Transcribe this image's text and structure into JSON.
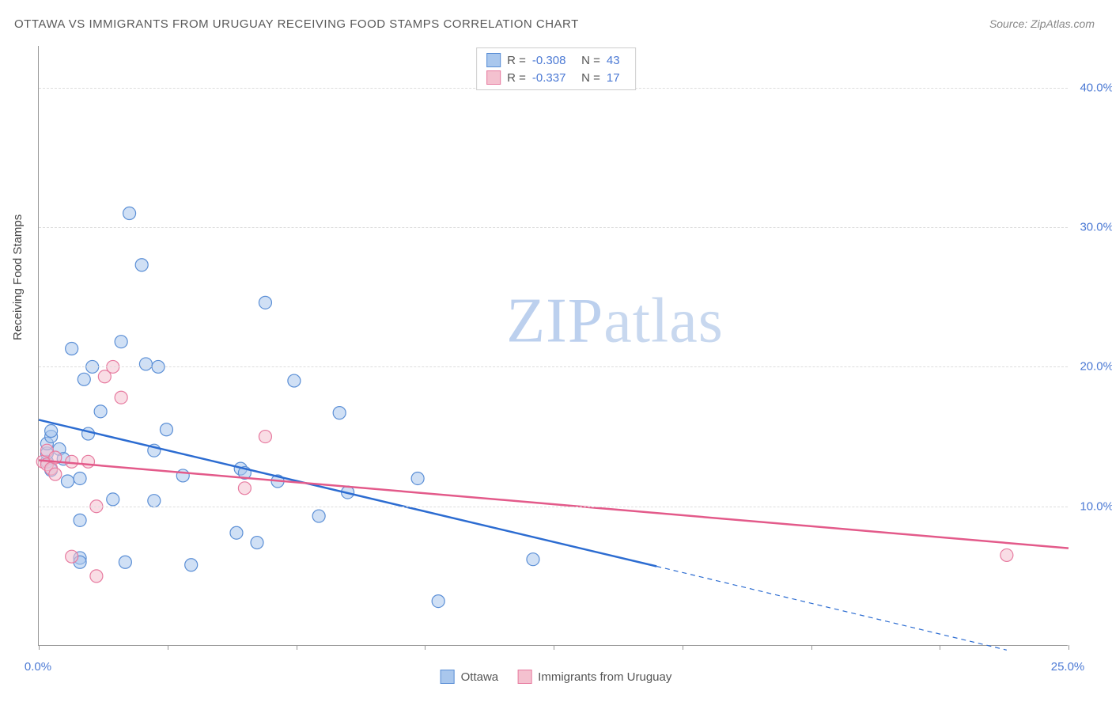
{
  "title": "OTTAWA VS IMMIGRANTS FROM URUGUAY RECEIVING FOOD STAMPS CORRELATION CHART",
  "source_label": "Source: ZipAtlas.com",
  "y_axis_label": "Receiving Food Stamps",
  "watermark": {
    "bold": "ZIP",
    "light": "atlas"
  },
  "chart": {
    "type": "scatter",
    "background_color": "#ffffff",
    "grid_color": "#dddddd",
    "axis_color": "#999999",
    "tick_label_color": "#4b79d4",
    "xlim": [
      0,
      25
    ],
    "ylim": [
      0,
      43
    ],
    "x_ticks": [
      0,
      3.125,
      6.25,
      9.375,
      12.5,
      15.625,
      18.75,
      21.875,
      25
    ],
    "x_tick_labels": {
      "0": "0.0%",
      "25": "25.0%"
    },
    "y_ticks": [
      10,
      20,
      30,
      40
    ],
    "y_tick_labels": {
      "10": "10.0%",
      "20": "20.0%",
      "30": "30.0%",
      "40": "40.0%"
    },
    "marker_radius": 8,
    "marker_opacity": 0.55,
    "series": [
      {
        "name": "Ottawa",
        "color_fill": "#a9c7ed",
        "color_stroke": "#5b8fd6",
        "line_color": "#2c6cd1",
        "line_width": 2.5,
        "R": "-0.308",
        "N": "43",
        "regression": {
          "x1": 0,
          "y1": 16.2,
          "x2": 15,
          "y2": 5.7
        },
        "regression_extrapolate": {
          "x1": 15,
          "y1": 5.7,
          "x2": 23.5,
          "y2": -0.3
        },
        "points": [
          [
            0.2,
            13.2
          ],
          [
            0.2,
            13.8
          ],
          [
            0.2,
            14.5
          ],
          [
            0.3,
            15.0
          ],
          [
            0.3,
            15.4
          ],
          [
            0.3,
            12.6
          ],
          [
            0.5,
            14.1
          ],
          [
            0.6,
            13.4
          ],
          [
            0.7,
            11.8
          ],
          [
            0.8,
            21.3
          ],
          [
            1.0,
            12.0
          ],
          [
            1.0,
            9.0
          ],
          [
            1.0,
            6.3
          ],
          [
            1.0,
            6.0
          ],
          [
            1.1,
            19.1
          ],
          [
            1.2,
            15.2
          ],
          [
            1.3,
            20.0
          ],
          [
            1.5,
            16.8
          ],
          [
            1.8,
            10.5
          ],
          [
            2.0,
            21.8
          ],
          [
            2.1,
            6.0
          ],
          [
            2.2,
            31.0
          ],
          [
            2.5,
            27.3
          ],
          [
            2.6,
            20.2
          ],
          [
            2.8,
            14.0
          ],
          [
            2.8,
            10.4
          ],
          [
            2.9,
            20.0
          ],
          [
            3.1,
            15.5
          ],
          [
            3.5,
            12.2
          ],
          [
            3.7,
            5.8
          ],
          [
            4.8,
            8.1
          ],
          [
            4.9,
            12.7
          ],
          [
            5.0,
            12.4
          ],
          [
            5.3,
            7.4
          ],
          [
            5.5,
            24.6
          ],
          [
            5.8,
            11.8
          ],
          [
            6.2,
            19.0
          ],
          [
            6.8,
            9.3
          ],
          [
            7.3,
            16.7
          ],
          [
            7.5,
            11.0
          ],
          [
            9.2,
            12.0
          ],
          [
            9.7,
            3.2
          ],
          [
            12.0,
            6.2
          ]
        ]
      },
      {
        "name": "Immigrants from Uruguay",
        "color_fill": "#f4c1cf",
        "color_stroke": "#e77ba0",
        "line_color": "#e35a8a",
        "line_width": 2.5,
        "R": "-0.337",
        "N": "17",
        "regression": {
          "x1": 0,
          "y1": 13.3,
          "x2": 25,
          "y2": 7.0
        },
        "points": [
          [
            0.1,
            13.2
          ],
          [
            0.2,
            13.0
          ],
          [
            0.2,
            14.0
          ],
          [
            0.3,
            12.7
          ],
          [
            0.4,
            13.5
          ],
          [
            0.4,
            12.3
          ],
          [
            0.8,
            13.2
          ],
          [
            0.8,
            6.4
          ],
          [
            1.2,
            13.2
          ],
          [
            1.4,
            10.0
          ],
          [
            1.4,
            5.0
          ],
          [
            1.6,
            19.3
          ],
          [
            1.8,
            20.0
          ],
          [
            2.0,
            17.8
          ],
          [
            5.0,
            11.3
          ],
          [
            5.5,
            15.0
          ],
          [
            23.5,
            6.5
          ]
        ]
      }
    ]
  },
  "legend_bottom": {
    "items": [
      {
        "label": "Ottawa",
        "fill": "#a9c7ed",
        "stroke": "#5b8fd6"
      },
      {
        "label": "Immigrants from Uruguay",
        "fill": "#f4c1cf",
        "stroke": "#e77ba0"
      }
    ]
  }
}
